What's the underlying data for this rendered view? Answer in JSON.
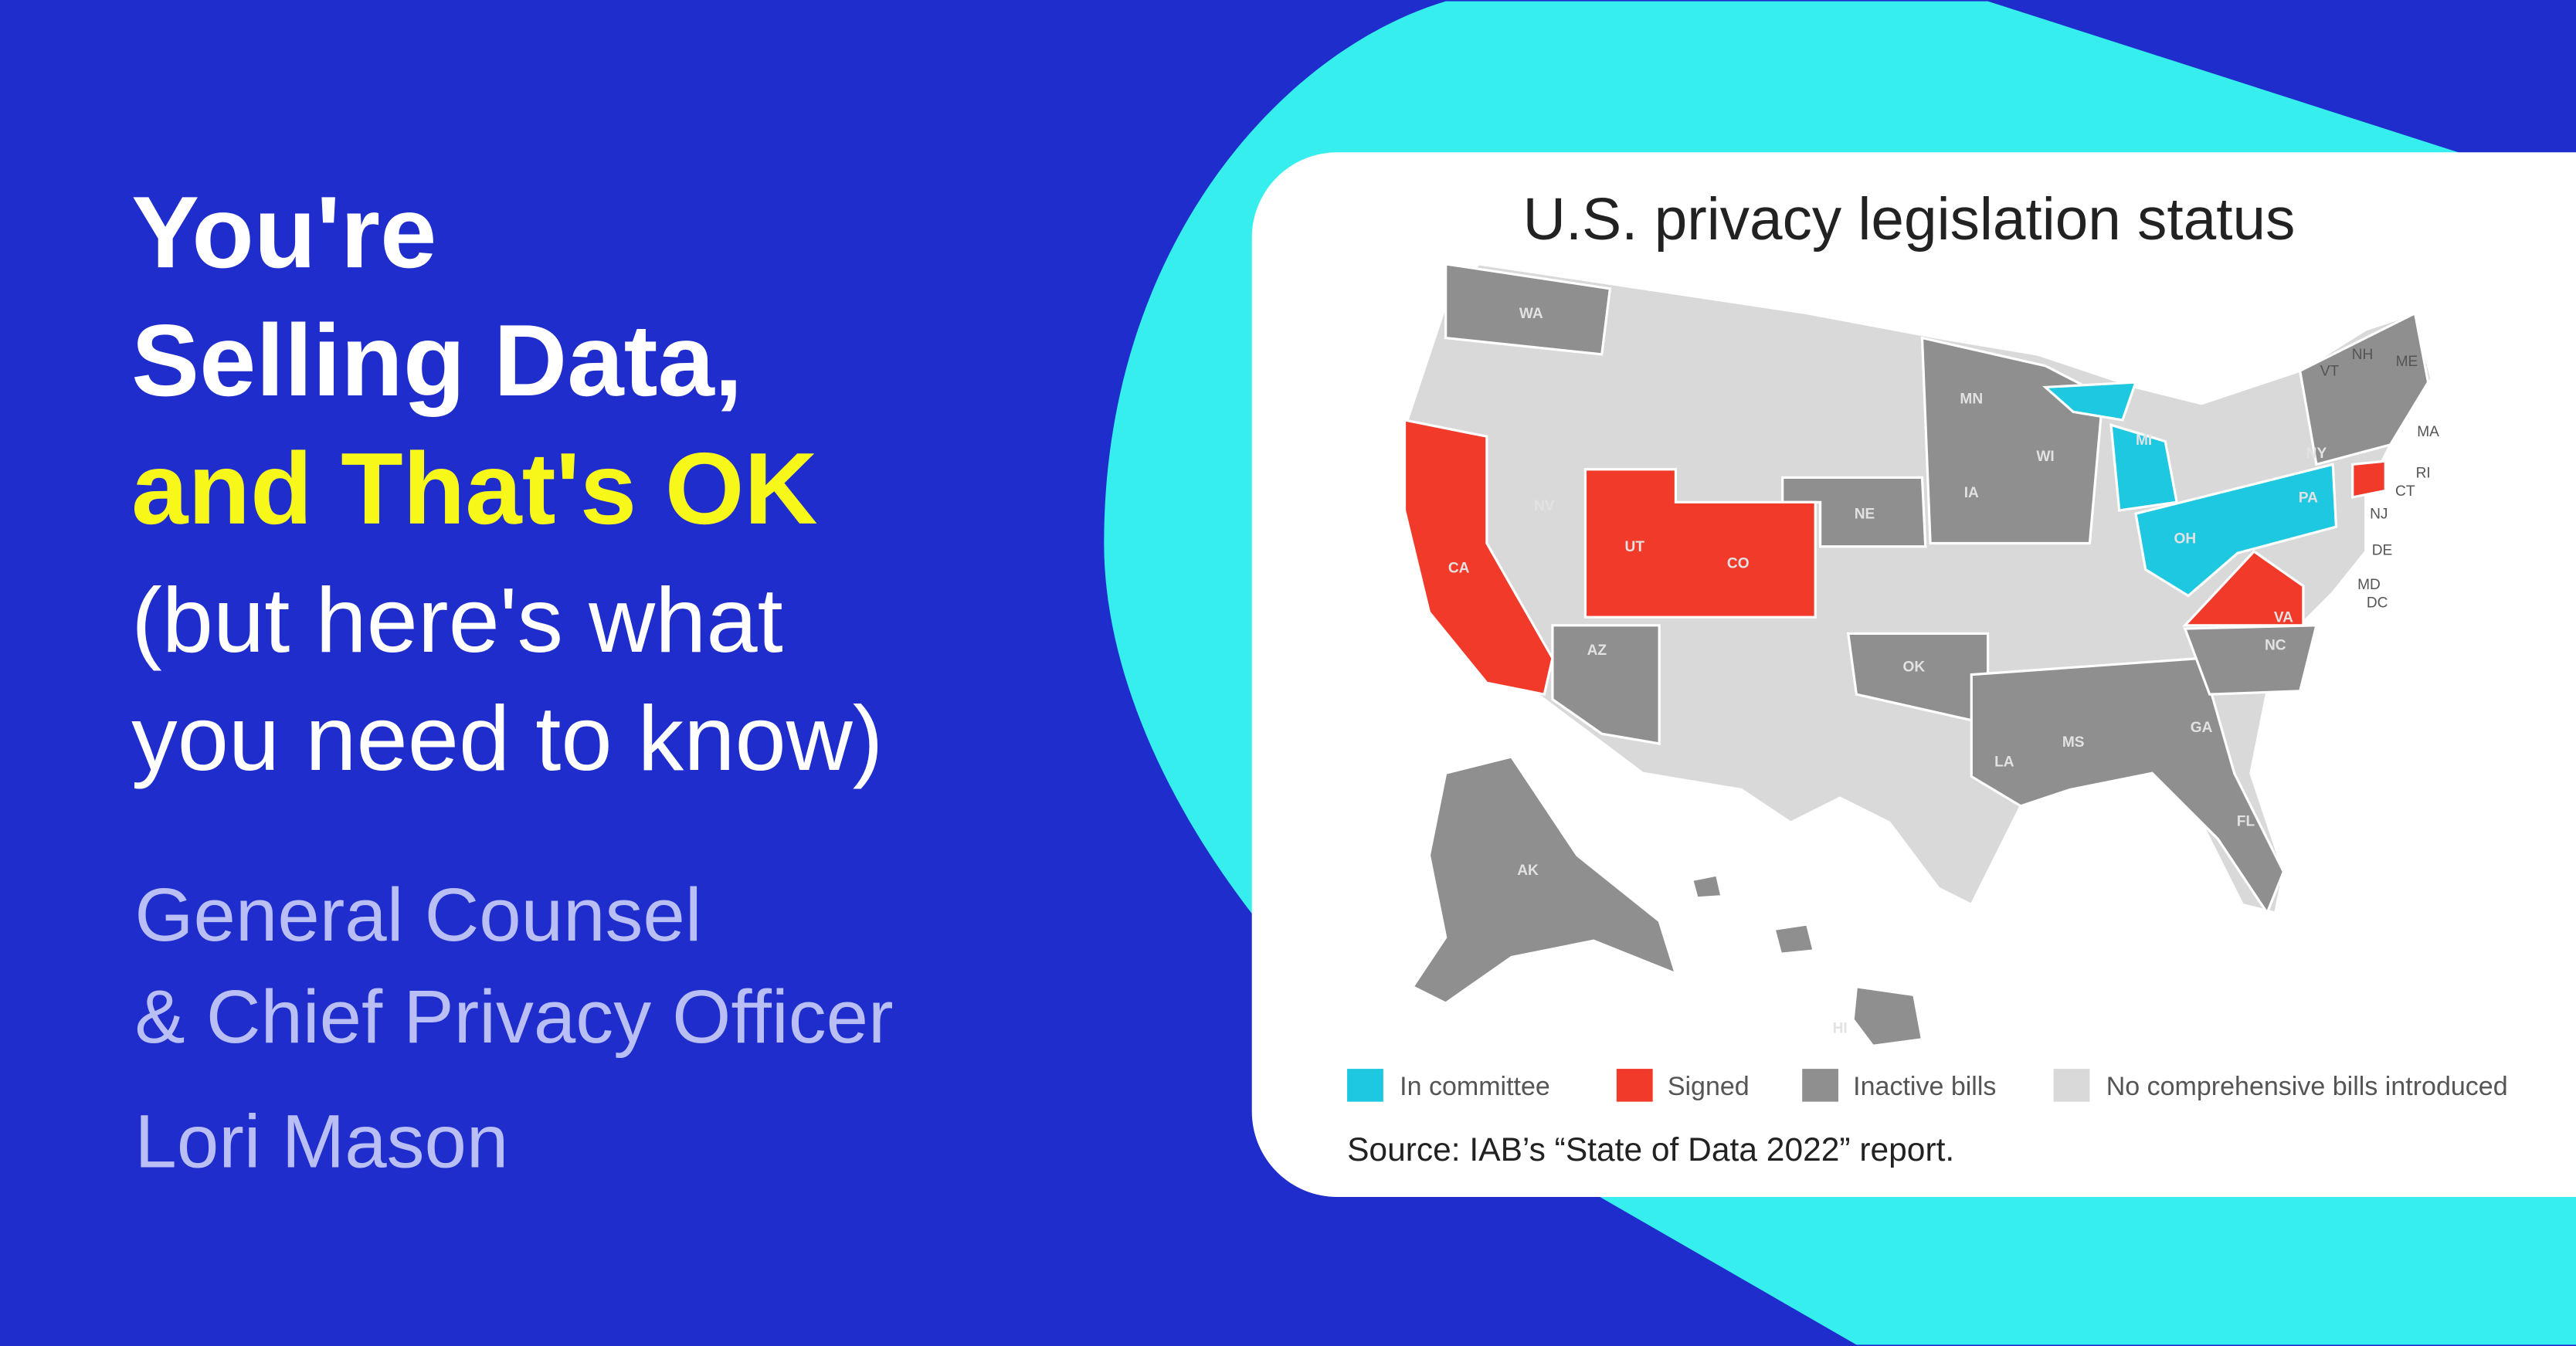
{
  "headline": {
    "lines": [
      "You're",
      "Selling Data,",
      "and That's OK",
      "(but here's what",
      "you need to know)"
    ]
  },
  "speaker": {
    "role_lines": [
      "General Counsel",
      "& Chief Privacy Officer"
    ],
    "name": "Lori Mason"
  },
  "map": {
    "title": "U.S. privacy legislation status",
    "state_labels": [
      "WA",
      "NV",
      "CA",
      "UT",
      "CO",
      "AZ",
      "NE",
      "MN",
      "WI",
      "IA",
      "MI",
      "OH",
      "PA",
      "VA",
      "NC",
      "OK",
      "LA",
      "MS",
      "GA",
      "FL",
      "AK",
      "HI",
      "ME",
      "NH",
      "VT",
      "MA",
      "RI",
      "CT",
      "NY",
      "NJ",
      "DE",
      "MD",
      "DC"
    ],
    "legend": [
      "In committee",
      "Signed",
      "Inactive bills",
      "No comprehensive bills introduced"
    ],
    "source": "Source: IAB’s “State of Data 2022” report."
  }
}
